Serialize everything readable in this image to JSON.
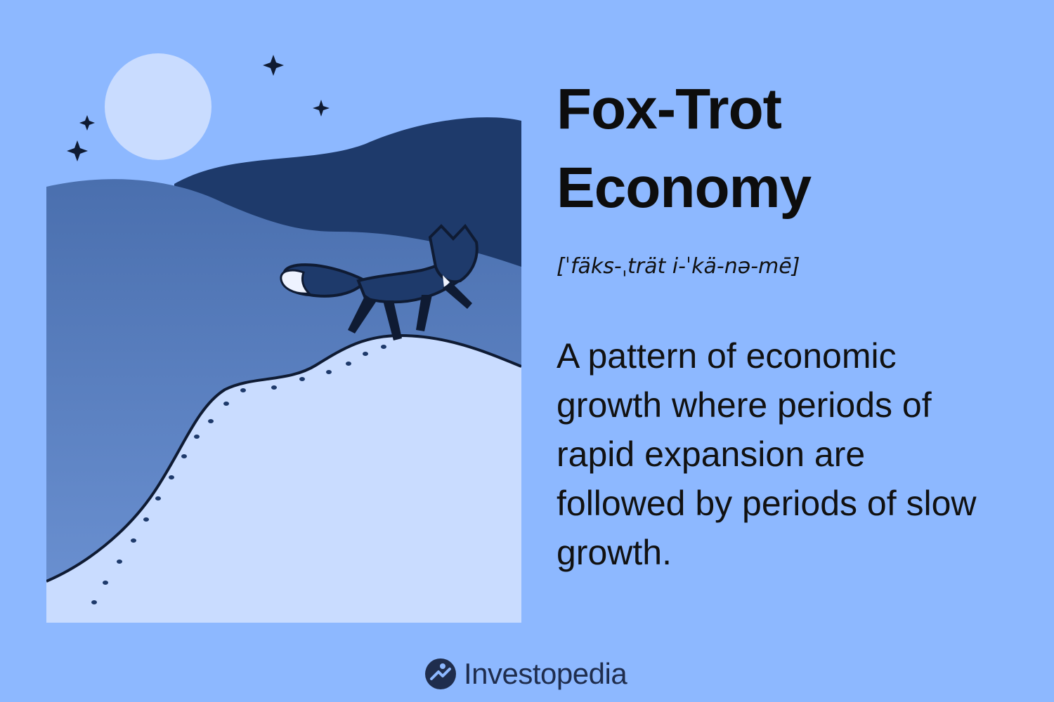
{
  "term": {
    "title_line1": "Fox-Trot",
    "title_line2": "Economy",
    "pronunciation": "[ˈfäks-ˌträt i-ˈkä-nə-mē]",
    "definition": "A pattern of economic growth where periods of rapid expansion are followed by periods of slow growth."
  },
  "brand": {
    "name": "Investopedia",
    "icon": "investopedia-logo-icon"
  },
  "colors": {
    "background": "#8db8ff",
    "moon": "#c9dcff",
    "far_hill": "#1e3a6b",
    "mid_hill": "#4a72ad",
    "snow": "#c9dcff",
    "fox": "#1e3a6b",
    "text": "#111111"
  }
}
